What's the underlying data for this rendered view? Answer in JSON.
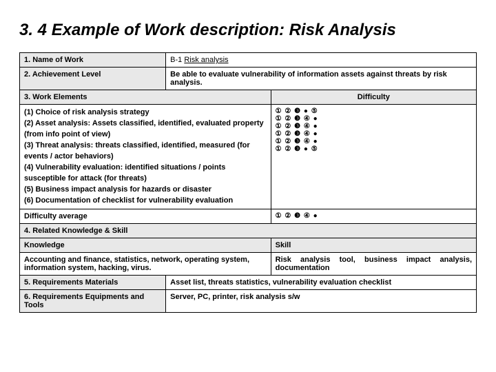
{
  "title": "3. 4  Example of Work description: Risk Analysis",
  "rows": {
    "name_label": "1. Name of Work",
    "name_value_prefix": " B-1 ",
    "name_value_underlined": "Risk analysis",
    "achievement_label": "2. Achievement Level",
    "achievement_value": "Be able to evaluate vulnerability of information assets against threats by risk analysis.",
    "elements_label": "3. Work Elements",
    "difficulty_header": "Difficulty",
    "elements_lines": [
      "(1) Choice of risk analysis strategy",
      "(2) Asset analysis: Assets classified, identified, evaluated property (from info point of view)",
      "(3) Threat analysis: threats classified, identified, measured (for events / actor behaviors)",
      "(4) Vulnerability evaluation: identified situations / points susceptible for attack (for  threats)",
      "(5) Business impact analysis for hazards or disaster",
      "(6) Documentation of checklist for vulnerability evaluation"
    ],
    "difficulty_rows": [
      "① ② ❸ ● ⑤",
      "① ② ❸ ④ ●",
      "① ② ❸ ④ ●",
      "① ② ❸ ④ ●",
      "① ② ❸ ④ ●",
      "① ② ❸ ● ⑤"
    ],
    "difficulty_avg_label": "Difficulty average",
    "difficulty_avg_value": "① ② ❸ ④ ●",
    "related_label": "4. Related Knowledge & Skill",
    "knowledge_header": "Knowledge",
    "skill_header": "Skill",
    "knowledge_value": "Accounting and finance, statistics, network, operating system, information system, hacking, virus.",
    "skill_value": "Risk analysis tool, business impact analysis, documentation",
    "materials_label": "5. Requirements Materials",
    "materials_value": "Asset list, threats statistics, vulnerability evaluation checklist",
    "equip_label": "6. Requirements Equipments and Tools",
    "equip_value": "Server, PC, printer, risk analysis s/w"
  },
  "colors": {
    "header_bg": "#e8e8e8",
    "border": "#000000",
    "text": "#000000",
    "background": "#ffffff"
  },
  "typography": {
    "title_fontsize": 24,
    "body_fontsize": 11,
    "font_family": "Arial"
  }
}
